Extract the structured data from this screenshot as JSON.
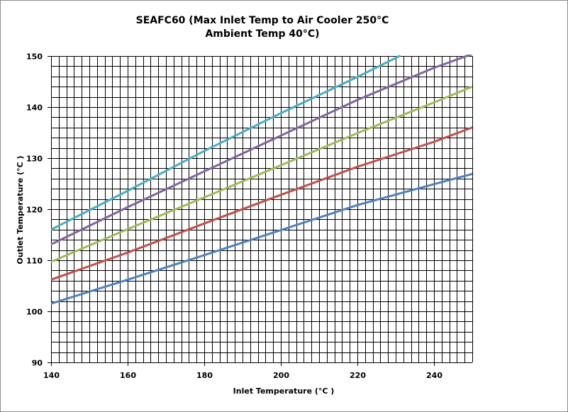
{
  "chart_data": {
    "type": "line",
    "title": "SEAFC60 (Max Inlet Temp to Air Cooler 250°C",
    "subtitle": "Ambient Temp 40°C)",
    "xlabel": "Inlet Temperature (°C )",
    "ylabel": "Outlet Temperature (°C )",
    "xlim": [
      140,
      250
    ],
    "ylim": [
      90,
      150
    ],
    "x_ticks": [
      "140",
      "160",
      "180",
      "200",
      "220",
      "240"
    ],
    "y_ticks": [
      "90",
      "100",
      "110",
      "120",
      "130",
      "140",
      "150"
    ],
    "x_minor_step": 2,
    "y_minor_step": 2,
    "grid": true,
    "legend": "none",
    "series": [
      {
        "color": "#4f81bd",
        "points": [
          [
            140,
            101.5
          ],
          [
            160,
            106.2
          ],
          [
            180,
            111.0
          ],
          [
            200,
            115.9
          ],
          [
            220,
            120.8
          ],
          [
            240,
            124.9
          ],
          [
            250,
            126.9
          ]
        ]
      },
      {
        "color": "#c0504d",
        "points": [
          [
            140,
            106.2
          ],
          [
            160,
            111.5
          ],
          [
            180,
            117.2
          ],
          [
            200,
            122.8
          ],
          [
            220,
            128.3
          ],
          [
            240,
            133.2
          ],
          [
            250,
            136.0
          ]
        ]
      },
      {
        "color": "#9bbb59",
        "points": [
          [
            140,
            109.7
          ],
          [
            160,
            116.1
          ],
          [
            180,
            122.3
          ],
          [
            200,
            128.6
          ],
          [
            220,
            134.9
          ],
          [
            240,
            140.9
          ],
          [
            250,
            144.0
          ]
        ]
      },
      {
        "color": "#8064a2",
        "points": [
          [
            140,
            113.1
          ],
          [
            160,
            120.4
          ],
          [
            180,
            127.4
          ],
          [
            200,
            134.4
          ],
          [
            220,
            141.4
          ],
          [
            240,
            147.7
          ],
          [
            250,
            150.4
          ]
        ]
      },
      {
        "color": "#4bacc6",
        "points": [
          [
            140,
            116.0
          ],
          [
            160,
            123.6
          ],
          [
            180,
            131.4
          ],
          [
            200,
            138.8
          ],
          [
            220,
            145.9
          ],
          [
            231,
            150.0
          ]
        ]
      }
    ]
  }
}
